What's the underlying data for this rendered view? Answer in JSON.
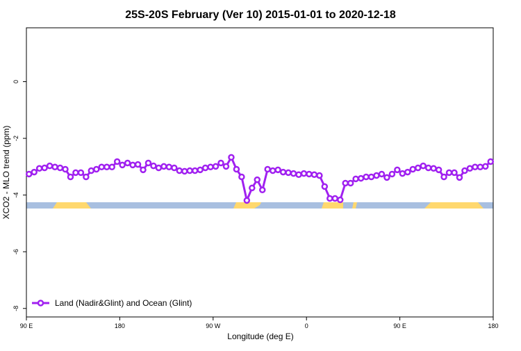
{
  "chart_data": {
    "type": "line",
    "title": "25S-20S February (Ver 10)   2015-01-01 to 2020-12-18",
    "x_label": "Longitude (deg E)",
    "y_label": "XCO2 - MLO trend (ppm)",
    "xlim": [
      90,
      540
    ],
    "xticks": [
      {
        "value": 90,
        "label": "90 E"
      },
      {
        "value": 180,
        "label": "180"
      },
      {
        "value": 270,
        "label": "90 W"
      },
      {
        "value": 360,
        "label": "0"
      },
      {
        "value": 450,
        "label": "90 E"
      },
      {
        "value": 540,
        "label": "180"
      }
    ],
    "ylim": [
      -8.3,
      1.9
    ],
    "yticks": [
      0,
      -2,
      -4,
      -6,
      -8
    ],
    "legend": "bottom-left",
    "x": [
      92.5,
      97.5,
      102.5,
      107.5,
      112.5,
      117.5,
      122.5,
      127.5,
      132.5,
      137.5,
      142.5,
      147.5,
      152.5,
      157.5,
      162.5,
      167.5,
      172.5,
      177.5,
      182.5,
      187.5,
      192.5,
      197.5,
      202.5,
      207.5,
      212.5,
      217.5,
      222.5,
      227.5,
      232.5,
      237.5,
      242.5,
      247.5,
      252.5,
      257.5,
      262.5,
      267.5,
      272.5,
      277.5,
      282.5,
      287.5,
      292.5,
      297.5,
      302.5,
      307.5,
      312.5,
      317.5,
      322.5,
      327.5,
      332.5,
      337.5,
      342.5,
      347.5,
      352.5,
      357.5,
      362.5,
      367.5,
      372.5,
      377.5,
      382.5,
      387.5,
      392.5,
      397.5,
      402.5,
      407.5,
      412.5,
      417.5,
      422.5,
      427.5,
      432.5,
      437.5,
      442.5,
      447.5,
      452.5,
      457.5,
      462.5,
      467.5,
      472.5,
      477.5,
      482.5,
      487.5,
      492.5,
      497.5,
      502.5,
      507.5,
      512.5,
      517.5,
      522.5,
      527.5,
      532.5,
      537.5
    ],
    "series": [
      {
        "name": "Land (Nadir&Glint) and Ocean (Glint)",
        "color": "#a020f0",
        "values": [
          -3.26,
          -3.19,
          -3.06,
          -3.04,
          -2.97,
          -3.01,
          -3.04,
          -3.09,
          -3.36,
          -3.21,
          -3.21,
          -3.36,
          -3.14,
          -3.09,
          -3.01,
          -3.01,
          -3.01,
          -2.82,
          -2.94,
          -2.87,
          -2.94,
          -2.92,
          -3.11,
          -2.87,
          -2.97,
          -3.04,
          -2.99,
          -3.01,
          -3.04,
          -3.14,
          -3.16,
          -3.14,
          -3.14,
          -3.11,
          -3.04,
          -3.01,
          -2.99,
          -2.87,
          -2.99,
          -2.67,
          -3.09,
          -3.36,
          -4.19,
          -3.75,
          -3.46,
          -3.82,
          -3.09,
          -3.14,
          -3.11,
          -3.19,
          -3.21,
          -3.24,
          -3.28,
          -3.24,
          -3.26,
          -3.28,
          -3.31,
          -3.7,
          -4.12,
          -4.12,
          -4.17,
          -3.58,
          -3.58,
          -3.43,
          -3.41,
          -3.36,
          -3.36,
          -3.31,
          -3.26,
          -3.38,
          -3.26,
          -3.11,
          -3.24,
          -3.19,
          -3.09,
          -3.04,
          -2.97,
          -3.04,
          -3.06,
          -3.11,
          -3.36,
          -3.21,
          -3.21,
          -3.38,
          -3.14,
          -3.06,
          -3.01,
          -3.01,
          -2.99,
          -2.82
        ]
      }
    ]
  }
}
